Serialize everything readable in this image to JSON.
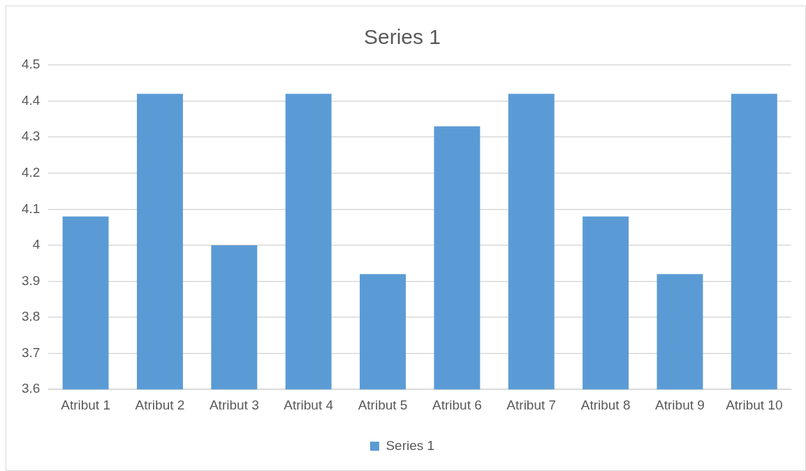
{
  "chart_data": {
    "type": "bar",
    "title": "Series 1",
    "categories": [
      "Atribut 1",
      "Atribut 2",
      "Atribut 3",
      "Atribut 4",
      "Atribut 5",
      "Atribut 6",
      "Atribut 7",
      "Atribut 8",
      "Atribut 9",
      "Atribut 10"
    ],
    "series": [
      {
        "name": "Series 1",
        "color": "#5b9bd5",
        "values": [
          4.08,
          4.42,
          4.0,
          4.42,
          3.92,
          4.33,
          4.42,
          4.08,
          3.92,
          4.42
        ]
      }
    ],
    "ylim": [
      3.6,
      4.5
    ],
    "yticks": [
      3.6,
      3.7,
      3.8,
      3.9,
      4,
      4.1,
      4.2,
      4.3,
      4.4,
      4.5
    ],
    "grid": "y",
    "legend": "bottom"
  }
}
